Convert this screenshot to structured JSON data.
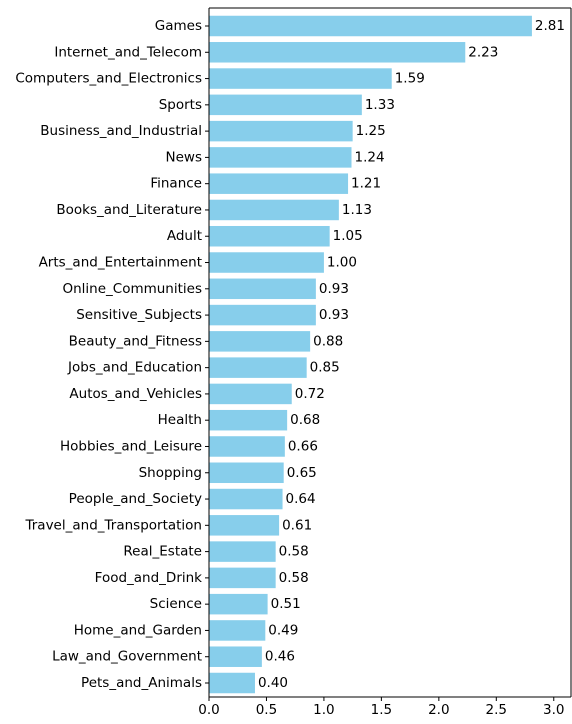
{
  "chart_data": {
    "type": "bar",
    "orientation": "horizontal",
    "categories": [
      "Games",
      "Internet_and_Telecom",
      "Computers_and_Electronics",
      "Sports",
      "Business_and_Industrial",
      "News",
      "Finance",
      "Books_and_Literature",
      "Adult",
      "Arts_and_Entertainment",
      "Online_Communities",
      "Sensitive_Subjects",
      "Beauty_and_Fitness",
      "Jobs_and_Education",
      "Autos_and_Vehicles",
      "Health",
      "Hobbies_and_Leisure",
      "Shopping",
      "People_and_Society",
      "Travel_and_Transportation",
      "Real_Estate",
      "Food_and_Drink",
      "Science",
      "Home_and_Garden",
      "Law_and_Government",
      "Pets_and_Animals"
    ],
    "values": [
      2.81,
      2.23,
      1.59,
      1.33,
      1.25,
      1.24,
      1.21,
      1.13,
      1.05,
      1.0,
      0.93,
      0.93,
      0.88,
      0.85,
      0.72,
      0.68,
      0.66,
      0.65,
      0.64,
      0.61,
      0.58,
      0.58,
      0.51,
      0.49,
      0.46,
      0.4
    ],
    "value_labels": [
      "2.81",
      "2.23",
      "1.59",
      "1.33",
      "1.25",
      "1.24",
      "1.21",
      "1.13",
      "1.05",
      "1.00",
      "0.93",
      "0.93",
      "0.88",
      "0.85",
      "0.72",
      "0.68",
      "0.66",
      "0.65",
      "0.64",
      "0.61",
      "0.58",
      "0.58",
      "0.51",
      "0.49",
      "0.46",
      "0.40"
    ],
    "xlim": [
      0,
      3.15
    ],
    "x_ticks": [
      0.0,
      0.5,
      1.0,
      1.5,
      2.0,
      2.5,
      3.0
    ],
    "x_tick_labels": [
      "0.0",
      "0.5",
      "1.0",
      "1.5",
      "2.0",
      "2.5",
      "3.0"
    ],
    "title": "",
    "xlabel": "",
    "ylabel": "",
    "grid": false,
    "legend": "none",
    "bar_color": "#87CEEB",
    "axis_color": "#000000"
  }
}
